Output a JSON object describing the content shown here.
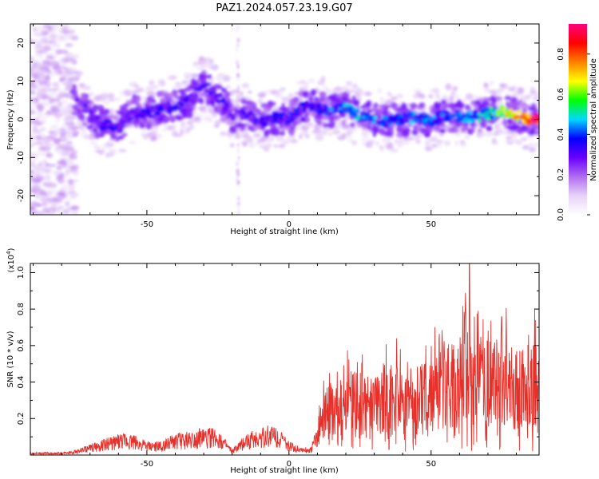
{
  "title": "PAZ1.2024.057.23.19.G07",
  "spectrogram": {
    "type": "heatmap",
    "xlabel": "Height of straight line (km)",
    "ylabel": "Frequency (Hz)",
    "xlim": [
      -91,
      88
    ],
    "ylim": [
      -25,
      25
    ],
    "xticks": [
      -50,
      0,
      50
    ],
    "yticks": [
      -20,
      -10,
      0,
      10,
      20
    ],
    "colorbar": {
      "label": "Normalized spectral amplitude",
      "range": [
        0,
        0.95
      ],
      "ticks": [
        "0.0",
        "0.2",
        "0.4",
        "0.6",
        "0.8"
      ],
      "colors": [
        "#ffffff",
        "#e7d2f7",
        "#b06cf0",
        "#6a00ff",
        "#0000ff",
        "#00d8ff",
        "#00ff00",
        "#ffff00",
        "#ff8000",
        "#ff0000",
        "#ff0080"
      ]
    },
    "ridge": [
      {
        "x": -75,
        "f": 5.5,
        "a": 0.25
      },
      {
        "x": -70,
        "f": 1.0,
        "a": 0.3
      },
      {
        "x": -65,
        "f": -1.5,
        "a": 0.35
      },
      {
        "x": -60,
        "f": -2.0,
        "a": 0.3
      },
      {
        "x": -55,
        "f": 2.0,
        "a": 0.3
      },
      {
        "x": -50,
        "f": 1.5,
        "a": 0.35
      },
      {
        "x": -45,
        "f": 3.0,
        "a": 0.35
      },
      {
        "x": -40,
        "f": 3.0,
        "a": 0.35
      },
      {
        "x": -35,
        "f": 5.0,
        "a": 0.3
      },
      {
        "x": -30,
        "f": 9.0,
        "a": 0.3
      },
      {
        "x": -25,
        "f": 6.0,
        "a": 0.3
      },
      {
        "x": -20,
        "f": 1.0,
        "a": 0.3
      },
      {
        "x": -15,
        "f": 1.5,
        "a": 0.3
      },
      {
        "x": -10,
        "f": -0.5,
        "a": 0.35
      },
      {
        "x": -5,
        "f": 0.5,
        "a": 0.35
      },
      {
        "x": 0,
        "f": 0.0,
        "a": 0.35
      },
      {
        "x": 5,
        "f": 3.5,
        "a": 0.35
      },
      {
        "x": 10,
        "f": 3.0,
        "a": 0.35
      },
      {
        "x": 15,
        "f": 2.0,
        "a": 0.4
      },
      {
        "x": 20,
        "f": 3.0,
        "a": 0.45
      },
      {
        "x": 25,
        "f": 1.0,
        "a": 0.45
      },
      {
        "x": 30,
        "f": 0.0,
        "a": 0.45
      },
      {
        "x": 35,
        "f": -0.5,
        "a": 0.4
      },
      {
        "x": 40,
        "f": 0.0,
        "a": 0.4
      },
      {
        "x": 45,
        "f": 0.5,
        "a": 0.45
      },
      {
        "x": 50,
        "f": -0.5,
        "a": 0.4
      },
      {
        "x": 55,
        "f": 1.0,
        "a": 0.4
      },
      {
        "x": 60,
        "f": 1.0,
        "a": 0.4
      },
      {
        "x": 65,
        "f": 0.5,
        "a": 0.45
      },
      {
        "x": 70,
        "f": 1.5,
        "a": 0.5
      },
      {
        "x": 75,
        "f": 2.0,
        "a": 0.6
      },
      {
        "x": 80,
        "f": 1.0,
        "a": 0.75
      },
      {
        "x": 85,
        "f": 0.0,
        "a": 0.95
      }
    ],
    "noise_band": {
      "x": [
        -91,
        -75
      ],
      "a": 0.12
    },
    "vertical_streak": {
      "x": -18,
      "a": 0.12
    }
  },
  "chart_data": {
    "type": "line",
    "title": "",
    "xlabel": "Height of straight line (km)",
    "ylabel": "SNR (10 * v/v)",
    "yscale_label": "(x10",
    "yscale_exp": "4",
    "ylabel_scale_text": "(x10^4)",
    "xlim": [
      -91,
      88
    ],
    "ylim": [
      0,
      1.05
    ],
    "xticks": [
      -50,
      0,
      50
    ],
    "yticks": [
      "0.2",
      "0.4",
      "0.6",
      "0.8",
      "1.0"
    ],
    "color": "#e8302a",
    "x": [
      -91,
      -85,
      -80,
      -75,
      -70,
      -65,
      -60,
      -55,
      -50,
      -45,
      -40,
      -35,
      -30,
      -25,
      -22,
      -20,
      -15,
      -10,
      -5,
      0,
      5,
      8,
      12,
      15,
      20,
      25,
      30,
      35,
      40,
      45,
      50,
      55,
      60,
      62,
      63,
      65,
      70,
      75,
      80,
      85,
      88
    ],
    "y": [
      0.01,
      0.01,
      0.01,
      0.02,
      0.04,
      0.06,
      0.08,
      0.08,
      0.05,
      0.05,
      0.08,
      0.09,
      0.1,
      0.1,
      0.05,
      0.02,
      0.08,
      0.1,
      0.12,
      0.05,
      0.03,
      0.03,
      0.22,
      0.28,
      0.3,
      0.32,
      0.28,
      0.35,
      0.3,
      0.33,
      0.35,
      0.4,
      0.42,
      0.65,
      0.35,
      0.45,
      0.42,
      0.44,
      0.38,
      0.42,
      0.4
    ],
    "peaks": [
      {
        "x": 63.5,
        "y": 1.05
      },
      {
        "x": 86,
        "y": 0.6
      }
    ]
  }
}
